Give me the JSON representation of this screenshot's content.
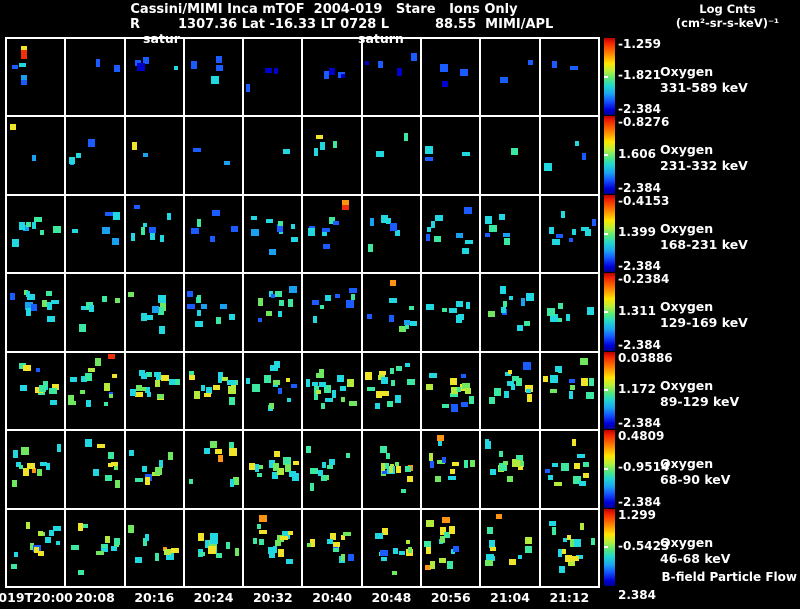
{
  "header": {
    "title": "Cassini/MIMI Inca mTOF  2004-019   Stare   Ions Only",
    "r_label": "R",
    "position_values": "1307.36 Lat -16.33 LT 0728 L",
    "l_value_and_credit": "88.55  MIMI/APL",
    "legend_line1": "Log Cnts",
    "legend_line2": "(cm²-sr-s-keV)⁻¹"
  },
  "plot": {
    "saturn_label_1": "satur",
    "saturn_label_2": "saturn",
    "x_ticks": [
      "019T20:00",
      "20:08",
      "20:16",
      "20:24",
      "20:32",
      "20:40",
      "20:48",
      "20:56",
      "21:04",
      "21:12"
    ],
    "bfield_label": "B-field Particle Flow",
    "grid_cols": 10,
    "grid_rows": 7
  },
  "rows": [
    {
      "species": "Oxygen",
      "energy": "331-589 keV",
      "cb_top": "-1.259",
      "cb_mid": "-1.821",
      "cb_bot": "-2.384"
    },
    {
      "species": "Oxygen",
      "energy": "231-332 keV",
      "cb_top": "-0.8276",
      "cb_mid": "1.606",
      "cb_bot": "-2.384"
    },
    {
      "species": "Oxygen",
      "energy": "168-231 keV",
      "cb_top": "-0.4153",
      "cb_mid": "1.399",
      "cb_bot": "-2.384"
    },
    {
      "species": "Oxygen",
      "energy": "129-169 keV",
      "cb_top": "-0.2384",
      "cb_mid": "1.311",
      "cb_bot": "-2.384"
    },
    {
      "species": "Oxygen",
      "energy": "89-129 keV",
      "cb_top": "0.03886",
      "cb_mid": "1.172",
      "cb_bot": "-2.384"
    },
    {
      "species": "Oxygen",
      "energy": "68-90 keV",
      "cb_top": "0.4809",
      "cb_mid": "-0.9514",
      "cb_bot": "-2.384"
    },
    {
      "species": "Oxygen",
      "energy": "46-68 keV",
      "cb_top": "1.299",
      "cb_mid": "-0.5423",
      "cb_bot": "2.384"
    }
  ],
  "chart_data": {
    "type": "heatmap",
    "title": "Cassini/MIMI Inca mTOF 2004-019 Stare Ions Only",
    "description": "7 stacked oxygen energy channels (rows) vs time (10 panels of 8 minutes each); colored pixels are log counts per angular bin on black background, jet rainbow colormap",
    "x_axis": {
      "start": "019T20:00",
      "end": "21:12",
      "tick_interval_minutes": 8,
      "ticks": [
        "019T20:00",
        "20:08",
        "20:16",
        "20:24",
        "20:32",
        "20:40",
        "20:48",
        "20:56",
        "21:04",
        "21:12"
      ]
    },
    "colorbar_scales": [
      {
        "channel": "Oxygen 331-589 keV",
        "top": -1.259,
        "mid": -1.821,
        "bottom": -2.384
      },
      {
        "channel": "Oxygen 231-332 keV",
        "top": -0.8276,
        "mid": 1.606,
        "bottom": -2.384
      },
      {
        "channel": "Oxygen 168-231 keV",
        "top": -0.4153,
        "mid": 1.399,
        "bottom": -2.384
      },
      {
        "channel": "Oxygen 129-169 keV",
        "top": -0.2384,
        "mid": 1.311,
        "bottom": -2.384
      },
      {
        "channel": "Oxygen 89-129 keV",
        "top": 0.03886,
        "mid": 1.172,
        "bottom": -2.384
      },
      {
        "channel": "Oxygen 68-90 keV",
        "top": 0.4809,
        "mid": -0.9514,
        "bottom": -2.384
      },
      {
        "channel": "Oxygen 46-68 keV",
        "top": 1.299,
        "mid": -0.5423,
        "bottom": 2.384
      }
    ],
    "colormap_top_to_bottom": [
      "#b80000",
      "#f02000",
      "#ff7a00",
      "#ffe600",
      "#b8f03c",
      "#55e87d",
      "#22d8cf",
      "#1ba8f0",
      "#1555ff",
      "#0000d8",
      "#000090"
    ],
    "dot_palette": {
      "db": "#0000cc",
      "bl": "#1a5cff",
      "lb": "#19a0f0",
      "cy": "#21d8e0",
      "gc": "#3ce8a0",
      "gr": "#6fe85f",
      "yg": "#b4ea3c",
      "ye": "#f0e428",
      "or": "#ff9414",
      "rd": "#f03008"
    },
    "seed": 20040119,
    "rows_render": [
      {
        "n": [
          2,
          4
        ],
        "band": [
          0.12,
          0.72
        ],
        "palette": [
          [
            "bl",
            45
          ],
          [
            "db",
            30
          ],
          [
            "cy",
            15
          ],
          [
            "lb",
            10
          ]
        ]
      },
      {
        "n": [
          1,
          4
        ],
        "band": [
          0.1,
          0.78
        ],
        "palette": [
          [
            "bl",
            35
          ],
          [
            "cy",
            30
          ],
          [
            "lb",
            15
          ],
          [
            "gc",
            12
          ],
          [
            "ye",
            8
          ]
        ]
      },
      {
        "n": [
          4,
          9
        ],
        "band": [
          0.08,
          0.8
        ],
        "palette": [
          [
            "cy",
            45
          ],
          [
            "bl",
            25
          ],
          [
            "lb",
            15
          ],
          [
            "gc",
            15
          ]
        ]
      },
      {
        "n": [
          6,
          12
        ],
        "band": [
          0.06,
          0.8
        ],
        "palette": [
          [
            "cy",
            42
          ],
          [
            "gc",
            20
          ],
          [
            "bl",
            13
          ],
          [
            "lb",
            10
          ],
          [
            "gr",
            15
          ]
        ]
      },
      {
        "n": [
          10,
          17
        ],
        "band": [
          0.05,
          0.82
        ],
        "palette": [
          [
            "cy",
            33
          ],
          [
            "gc",
            22
          ],
          [
            "gr",
            15
          ],
          [
            "ye",
            12
          ],
          [
            "yg",
            10
          ],
          [
            "bl",
            8
          ]
        ]
      },
      {
        "n": [
          8,
          15
        ],
        "band": [
          0.06,
          0.85
        ],
        "palette": [
          [
            "cy",
            30
          ],
          [
            "gc",
            22
          ],
          [
            "gr",
            15
          ],
          [
            "ye",
            15
          ],
          [
            "yg",
            10
          ],
          [
            "bl",
            5
          ],
          [
            "or",
            3
          ]
        ]
      },
      {
        "n": [
          9,
          17
        ],
        "band": [
          0.05,
          0.88
        ],
        "palette": [
          [
            "cy",
            30
          ],
          [
            "gc",
            20
          ],
          [
            "ye",
            18
          ],
          [
            "gr",
            14
          ],
          [
            "yg",
            10
          ],
          [
            "bl",
            4
          ],
          [
            "or",
            4
          ]
        ]
      }
    ],
    "special_dots": [
      {
        "r": 0,
        "c": 0,
        "x": 0.27,
        "y": 0.15,
        "w": 6,
        "h": 10,
        "col": "rd"
      },
      {
        "r": 0,
        "c": 0,
        "x": 0.27,
        "y": 0.1,
        "w": 6,
        "h": 4,
        "col": "ye"
      },
      {
        "r": 0,
        "c": 0,
        "x": 0.28,
        "y": 0.5,
        "w": 6,
        "h": 5,
        "col": "lb"
      },
      {
        "r": 0,
        "c": 0,
        "x": 0.28,
        "y": 0.57,
        "w": 6,
        "h": 5,
        "col": "bl"
      },
      {
        "r": 1,
        "c": 0,
        "x": 0.06,
        "y": 0.1,
        "w": 6,
        "h": 6,
        "col": "ye"
      },
      {
        "r": 2,
        "c": 5,
        "x": 0.78,
        "y": 0.05,
        "w": 7,
        "h": 6,
        "col": "or"
      },
      {
        "r": 2,
        "c": 5,
        "x": 0.78,
        "y": 0.13,
        "w": 7,
        "h": 5,
        "col": "rd"
      },
      {
        "r": 3,
        "c": 6,
        "x": 0.52,
        "y": 0.08,
        "w": 6,
        "h": 6,
        "col": "or"
      },
      {
        "r": 4,
        "c": 1,
        "x": 0.84,
        "y": 0.02,
        "w": 7,
        "h": 5,
        "col": "rd"
      },
      {
        "r": 5,
        "c": 7,
        "x": 0.3,
        "y": 0.06,
        "w": 7,
        "h": 6,
        "col": "or"
      },
      {
        "r": 6,
        "c": 4,
        "x": 0.3,
        "y": 0.07,
        "w": 8,
        "h": 7,
        "col": "or"
      },
      {
        "r": 6,
        "c": 7,
        "x": 0.4,
        "y": 0.1,
        "w": 8,
        "h": 6,
        "col": "or"
      },
      {
        "r": 6,
        "c": 8,
        "x": 0.3,
        "y": 0.05,
        "w": 6,
        "h": 5,
        "col": "or"
      }
    ]
  }
}
